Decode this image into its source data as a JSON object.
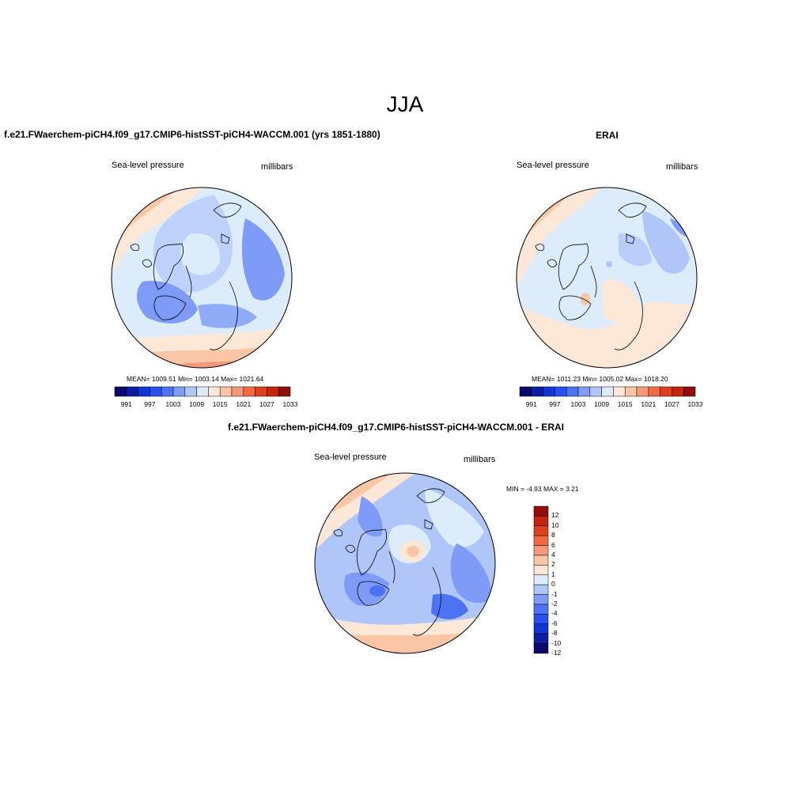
{
  "page_title": "JJA",
  "colors": {
    "seq_palette": [
      "#0a0a6e",
      "#0d1ea0",
      "#1434d6",
      "#2850f0",
      "#4d73f5",
      "#7d9bf7",
      "#b0c6f9",
      "#ddecfb",
      "#fde8d8",
      "#fbc6a6",
      "#f59a78",
      "#ef6a3e",
      "#e0401c",
      "#c4250e",
      "#920e0a"
    ],
    "diff_palette": [
      "#0a0a6e",
      "#0d1ea0",
      "#1434d6",
      "#2850f0",
      "#4d73f5",
      "#7d9bf7",
      "#b0c6f9",
      "#ddecfb",
      "#fde8d8",
      "#fbc6a6",
      "#f59a78",
      "#ef6a3e",
      "#e0401c",
      "#c4250e",
      "#920e0a"
    ]
  },
  "panels": {
    "model": {
      "title": "f.e21.FWaerchem-piCH4.f09_g17.CMIP6-histSST-piCH4-WACCM.001 (yrs 1851-1880)",
      "variable": "Sea-level pressure",
      "units": "millibars",
      "stats": "MEAN= 1009.51  Min= 1003.14  Max= 1021.64",
      "stats_values": {
        "mean": 1009.51,
        "min": 1003.14,
        "max": 1021.64
      },
      "colorbar_labels": [
        "991",
        "997",
        "1003",
        "1009",
        "1015",
        "1021",
        "1027",
        "1033"
      ]
    },
    "obs": {
      "title": "ERAI",
      "variable": "Sea-level pressure",
      "units": "millibars",
      "stats": "MEAN= 1011.23  Min= 1005.02  Max= 1018.20",
      "stats_values": {
        "mean": 1011.23,
        "min": 1005.02,
        "max": 1018.2
      },
      "colorbar_labels": [
        "991",
        "997",
        "1003",
        "1009",
        "1015",
        "1021",
        "1027",
        "1033"
      ]
    },
    "diff": {
      "title": "f.e21.FWaerchem-piCH4.f09_g17.CMIP6-histSST-piCH4-WACCM.001 - ERAI",
      "variable": "Sea-level pressure",
      "units": "millibars",
      "stats": "MIN =  -4.93 MAX =   3.21",
      "stats_values": {
        "min": -4.93,
        "max": 3.21
      },
      "colorbar_labels": [
        "12",
        "10",
        "8",
        "6",
        "4",
        "2",
        "1",
        "0",
        "-1",
        "-2",
        "-4",
        "-6",
        "-8",
        "-10",
        "-12"
      ]
    }
  }
}
